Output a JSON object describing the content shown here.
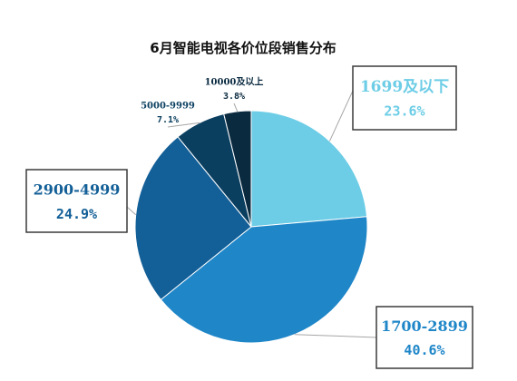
{
  "chart_data": {
    "type": "pie",
    "title": "6月智能电视各价位段销售分布",
    "categories": [
      "1699及以下",
      "1700-2899",
      "2900-4999",
      "5000-9999",
      "10000及以上"
    ],
    "values": [
      23.6,
      40.6,
      24.9,
      7.1,
      3.8
    ],
    "value_labels": [
      "23.6%",
      "40.6%",
      "24.9%",
      "7.1%",
      "3.8%"
    ],
    "unit": "%",
    "colors": [
      "#6dcde6",
      "#1f86c8",
      "#135f97",
      "#0b3f60",
      "#0a2a40"
    ],
    "label_colors": [
      "#6dcde6",
      "#1f86c8",
      "#135f97",
      "#0b3f60",
      "#0a2a40"
    ],
    "start_angle_deg": 0,
    "direction": "clockwise",
    "legend": "none"
  }
}
